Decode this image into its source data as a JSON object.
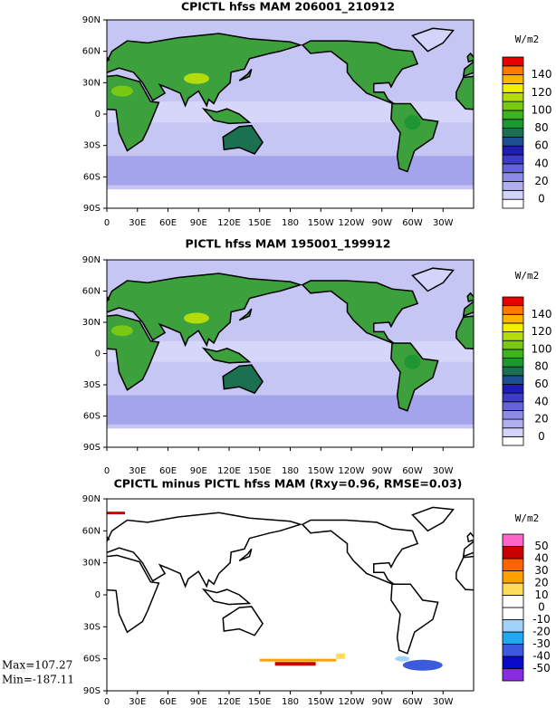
{
  "lon_ticks": [
    "0",
    "30E",
    "60E",
    "90E",
    "120E",
    "150E",
    "180",
    "150W",
    "120W",
    "90W",
    "60W",
    "30W"
  ],
  "lat_ticks": [
    "90N",
    "60N",
    "30N",
    "0",
    "30S",
    "60S",
    "90S"
  ],
  "panels": [
    {
      "title": "CPICTL hfss MAM 206001_210912",
      "units": "W/m2",
      "levels": [
        0,
        20,
        40,
        60,
        80,
        100,
        120,
        140
      ],
      "colors": [
        "#ffffff",
        "#d4d4fa",
        "#b0b0f0",
        "#8c8ce6",
        "#6464d8",
        "#3c3cc8",
        "#1e1eb4",
        "#1c5090",
        "#1a7050",
        "#1e9632",
        "#3cb41e",
        "#78c814",
        "#b4dc0a",
        "#f0f000",
        "#ffb400",
        "#ff7800",
        "#e60000"
      ]
    },
    {
      "title": "PICTL hfss MAM 195001_199912",
      "units": "W/m2",
      "levels": [
        0,
        20,
        40,
        60,
        80,
        100,
        120,
        140
      ],
      "colors": [
        "#ffffff",
        "#d4d4fa",
        "#b0b0f0",
        "#8c8ce6",
        "#6464d8",
        "#3c3cc8",
        "#1e1eb4",
        "#1c5090",
        "#1a7050",
        "#1e9632",
        "#3cb41e",
        "#78c814",
        "#b4dc0a",
        "#f0f000",
        "#ffb400",
        "#ff7800",
        "#e60000"
      ]
    },
    {
      "title": "CPICTL minus PICTL hfss MAM (Rxy=0.96, RMSE=0.03)",
      "units": "W/m2",
      "levels": [
        -50,
        -40,
        -30,
        -20,
        -10,
        0,
        10,
        20,
        30,
        40,
        50
      ],
      "colors": [
        "#8a2be2",
        "#0a0ac8",
        "#3c5adc",
        "#1eaaf0",
        "#a0d2fa",
        "#ffffff",
        "#ffffff",
        "#ffdc5a",
        "#ffa000",
        "#ff6400",
        "#c80000",
        "#ff64c8"
      ]
    }
  ],
  "stats": {
    "max": "Max=107.27",
    "min": "Min=-187.11"
  }
}
